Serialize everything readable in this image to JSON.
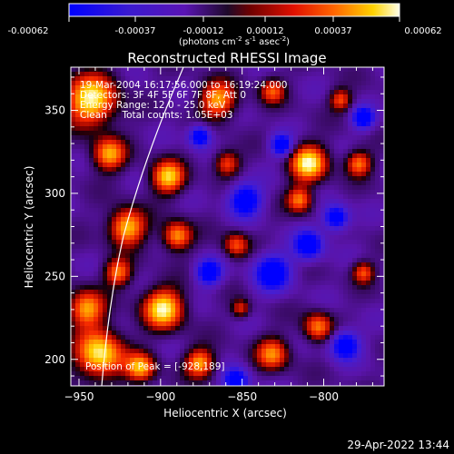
{
  "colorbar": {
    "ticks": [
      "-0.00062",
      "-0.00037",
      "-0.00012",
      "0.00012",
      "0.00037",
      "0.00062"
    ],
    "units_main": "(photons cm",
    "units_exp1": "-2",
    "units_mid": " s",
    "units_exp2": "-1",
    "units_end": " asec",
    "units_exp3": "-2",
    "units_close": ")"
  },
  "chart_data": {
    "type": "heatmap",
    "title": "Reconstructed RHESSI Image",
    "xlabel": "Heliocentric X (arcsec)",
    "ylabel": "Heliocentric Y (arcsec)",
    "xlim": [
      -955,
      -763
    ],
    "ylim": [
      184,
      376
    ],
    "xticks": [
      -950,
      -900,
      -850,
      -800
    ],
    "yticks": [
      200,
      250,
      300,
      350
    ],
    "colorscale": [
      "#0000ff",
      "#5a14b4",
      "#3c0a5a",
      "#000000",
      "#a00000",
      "#ff3c00",
      "#ffc800",
      "#ffffdc"
    ],
    "value_range": [
      -0.00062,
      0.00062
    ],
    "annotations": [
      "19-Mar-2004 16:17:56.000 to 16:19:24.000",
      "Detectors: 3F 4F 5F 6F 7F 8F, Att 0",
      "Energy Range: 12.0 - 25.0 keV",
      "Clean     Total counts: 1.05E+03"
    ],
    "peak_label": "Position of Peak = [-928,189]",
    "peak": [
      -928,
      189
    ],
    "limb_curve": "solar limb (white arc)"
  },
  "timestamp": "29-Apr-2022 13:44"
}
